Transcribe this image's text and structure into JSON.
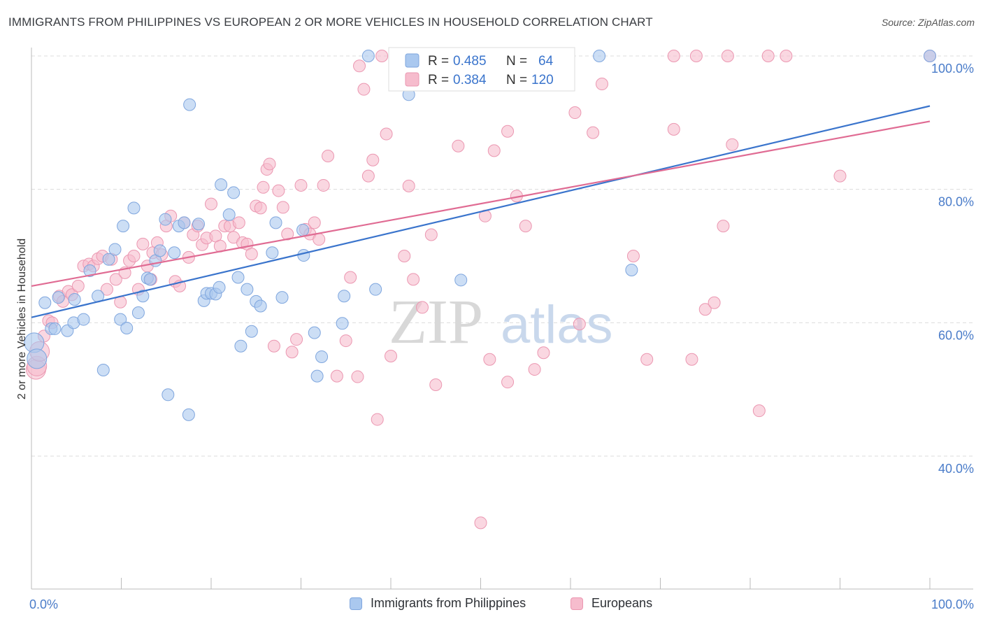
{
  "title": "IMMIGRANTS FROM PHILIPPINES VS EUROPEAN 2 OR MORE VEHICLES IN HOUSEHOLD CORRELATION CHART",
  "source": "Source: ZipAtlas.com",
  "watermark": {
    "zip": "ZIP",
    "atlas": "atlas"
  },
  "colors": {
    "blue_fill": "#aac8ef",
    "blue_stroke": "#7fa6de",
    "blue_line": "#3a74cc",
    "pink_fill": "#f6bccd",
    "pink_stroke": "#eb97b1",
    "pink_line": "#e06b93",
    "axis_label": "#4a7cc9",
    "grid": "#dcdcdc"
  },
  "legend_box": {
    "rows": [
      {
        "r_label": "R =",
        "r_value": "0.485",
        "n_label": "N =",
        "n_value": "64"
      },
      {
        "r_label": "R =",
        "r_value": "0.384",
        "n_label": "N =",
        "n_value": "120"
      }
    ]
  },
  "chart_data": {
    "type": "scatter",
    "title": "IMMIGRANTS FROM PHILIPPINES VS EUROPEAN 2 OR MORE VEHICLES IN HOUSEHOLD CORRELATION CHART",
    "xlabel": "",
    "ylabel": "2 or more Vehicles in Household",
    "xlim": [
      0,
      100
    ],
    "ylim": [
      20,
      104
    ],
    "x_tick_labels": [
      "0.0%",
      "100.0%"
    ],
    "y_ticks": [
      40,
      60,
      80,
      100
    ],
    "y_tick_labels": [
      "40.0%",
      "60.0%",
      "80.0%",
      "100.0%"
    ],
    "grid": true,
    "legend_position": "top-center",
    "series": [
      {
        "name": "Immigrants from Philippines",
        "R": 0.485,
        "N": 64,
        "trend": {
          "x": [
            0,
            100
          ],
          "y": [
            60.8,
            92.5
          ]
        },
        "points": [
          [
            0.3,
            57.0
          ],
          [
            0.6,
            54.6
          ],
          [
            1.5,
            63.0
          ],
          [
            2.2,
            59.1
          ],
          [
            2.6,
            59.1
          ],
          [
            3.0,
            63.8
          ],
          [
            4.0,
            58.8
          ],
          [
            4.7,
            60.0
          ],
          [
            4.8,
            63.5
          ],
          [
            5.8,
            60.5
          ],
          [
            6.5,
            67.8
          ],
          [
            7.4,
            64.0
          ],
          [
            8.0,
            52.9
          ],
          [
            8.6,
            69.5
          ],
          [
            9.3,
            71.0
          ],
          [
            9.9,
            60.5
          ],
          [
            10.2,
            74.5
          ],
          [
            10.6,
            59.2
          ],
          [
            11.4,
            77.2
          ],
          [
            11.9,
            61.5
          ],
          [
            12.4,
            64.0
          ],
          [
            12.9,
            66.7
          ],
          [
            13.2,
            66.5
          ],
          [
            13.8,
            69.3
          ],
          [
            14.3,
            70.8
          ],
          [
            14.9,
            75.5
          ],
          [
            15.2,
            49.2
          ],
          [
            15.9,
            70.5
          ],
          [
            16.4,
            74.5
          ],
          [
            17.0,
            75.0
          ],
          [
            17.5,
            46.2
          ],
          [
            17.6,
            92.7
          ],
          [
            18.6,
            74.8
          ],
          [
            19.2,
            63.3
          ],
          [
            19.5,
            64.4
          ],
          [
            20.0,
            64.4
          ],
          [
            20.5,
            64.3
          ],
          [
            20.9,
            65.3
          ],
          [
            21.1,
            80.7
          ],
          [
            22.0,
            76.2
          ],
          [
            22.5,
            79.5
          ],
          [
            23.0,
            66.8
          ],
          [
            23.3,
            56.5
          ],
          [
            24.0,
            65.0
          ],
          [
            24.5,
            58.7
          ],
          [
            25.0,
            63.2
          ],
          [
            25.5,
            62.5
          ],
          [
            26.8,
            70.5
          ],
          [
            27.2,
            75.0
          ],
          [
            27.9,
            63.8
          ],
          [
            30.2,
            73.9
          ],
          [
            30.3,
            70.1
          ],
          [
            31.5,
            58.5
          ],
          [
            31.8,
            52.0
          ],
          [
            32.3,
            54.9
          ],
          [
            34.6,
            59.9
          ],
          [
            34.8,
            64.0
          ],
          [
            37.5,
            100.0
          ],
          [
            38.3,
            65.0
          ],
          [
            42.0,
            94.2
          ],
          [
            47.8,
            66.4
          ],
          [
            63.2,
            100.0
          ],
          [
            66.8,
            67.9
          ],
          [
            100.0,
            100.0
          ]
        ]
      },
      {
        "name": "Europeans",
        "R": 0.384,
        "N": 120,
        "trend": {
          "x": [
            0,
            100
          ],
          "y": [
            65.5,
            90.2
          ]
        },
        "points": [
          [
            0.5,
            53.0
          ],
          [
            0.6,
            53.5
          ],
          [
            0.9,
            55.7
          ],
          [
            1.4,
            58.0
          ],
          [
            1.9,
            60.3
          ],
          [
            2.3,
            60.0
          ],
          [
            3.1,
            64.0
          ],
          [
            3.5,
            63.2
          ],
          [
            4.1,
            64.7
          ],
          [
            4.5,
            64.2
          ],
          [
            5.2,
            65.5
          ],
          [
            5.8,
            68.5
          ],
          [
            6.4,
            68.8
          ],
          [
            6.9,
            68.5
          ],
          [
            7.4,
            69.6
          ],
          [
            7.9,
            70.0
          ],
          [
            8.4,
            65.0
          ],
          [
            8.9,
            69.5
          ],
          [
            9.4,
            66.5
          ],
          [
            9.9,
            63.1
          ],
          [
            10.4,
            67.5
          ],
          [
            10.9,
            69.3
          ],
          [
            11.4,
            70.0
          ],
          [
            11.9,
            65.0
          ],
          [
            12.4,
            71.8
          ],
          [
            12.9,
            68.5
          ],
          [
            13.3,
            66.5
          ],
          [
            13.5,
            70.5
          ],
          [
            14.0,
            72.0
          ],
          [
            14.5,
            70.2
          ],
          [
            15.0,
            74.5
          ],
          [
            15.5,
            76.0
          ],
          [
            16.0,
            66.2
          ],
          [
            16.5,
            65.5
          ],
          [
            17.0,
            75.0
          ],
          [
            17.5,
            69.8
          ],
          [
            18.0,
            73.2
          ],
          [
            18.5,
            74.5
          ],
          [
            19.0,
            71.7
          ],
          [
            19.5,
            72.7
          ],
          [
            20.0,
            77.8
          ],
          [
            20.5,
            73.0
          ],
          [
            21.0,
            71.5
          ],
          [
            21.5,
            74.5
          ],
          [
            22.1,
            74.5
          ],
          [
            22.5,
            72.8
          ],
          [
            23.1,
            75.0
          ],
          [
            23.5,
            72.0
          ],
          [
            24.0,
            71.8
          ],
          [
            24.5,
            70.3
          ],
          [
            25.0,
            77.5
          ],
          [
            25.5,
            77.2
          ],
          [
            25.8,
            80.3
          ],
          [
            26.2,
            83.0
          ],
          [
            26.5,
            83.8
          ],
          [
            27.0,
            56.5
          ],
          [
            27.5,
            79.8
          ],
          [
            28.0,
            77.3
          ],
          [
            28.5,
            73.3
          ],
          [
            29.0,
            55.6
          ],
          [
            29.5,
            57.5
          ],
          [
            30.0,
            80.6
          ],
          [
            30.5,
            74.0
          ],
          [
            31.0,
            73.3
          ],
          [
            31.5,
            75.0
          ],
          [
            32.0,
            72.5
          ],
          [
            32.5,
            80.6
          ],
          [
            33.0,
            85.0
          ],
          [
            34.0,
            52.0
          ],
          [
            35.0,
            57.3
          ],
          [
            35.5,
            66.8
          ],
          [
            36.3,
            51.9
          ],
          [
            36.5,
            98.5
          ],
          [
            37.0,
            95.0
          ],
          [
            37.5,
            82.0
          ],
          [
            38.0,
            84.4
          ],
          [
            38.5,
            45.5
          ],
          [
            39.0,
            100.0
          ],
          [
            39.5,
            88.3
          ],
          [
            40.0,
            55.0
          ],
          [
            41.0,
            100.0
          ],
          [
            41.5,
            70.0
          ],
          [
            42.0,
            80.5
          ],
          [
            42.5,
            66.5
          ],
          [
            43.5,
            62.3
          ],
          [
            44.5,
            73.2
          ],
          [
            45.0,
            50.7
          ],
          [
            46.0,
            97.0
          ],
          [
            47.5,
            86.5
          ],
          [
            47.0,
            100.0
          ],
          [
            50.0,
            30.0
          ],
          [
            50.5,
            76.0
          ],
          [
            51.0,
            54.5
          ],
          [
            51.5,
            85.8
          ],
          [
            53.0,
            88.7
          ],
          [
            53.0,
            51.1
          ],
          [
            54.0,
            79.0
          ],
          [
            55.0,
            74.5
          ],
          [
            56.0,
            53.0
          ],
          [
            57.0,
            55.5
          ],
          [
            60.5,
            91.5
          ],
          [
            61.0,
            59.8
          ],
          [
            62.5,
            88.5
          ],
          [
            63.5,
            95.8
          ],
          [
            67.0,
            70.0
          ],
          [
            68.5,
            54.5
          ],
          [
            71.5,
            89.0
          ],
          [
            71.5,
            100.0
          ],
          [
            74.0,
            100.0
          ],
          [
            73.5,
            54.5
          ],
          [
            75.0,
            62.0
          ],
          [
            76.0,
            63.0
          ],
          [
            77.0,
            74.5
          ],
          [
            77.5,
            100.0
          ],
          [
            78.0,
            86.7
          ],
          [
            81.0,
            46.8
          ],
          [
            82.0,
            100.0
          ],
          [
            84.0,
            100.0
          ],
          [
            90.0,
            82.0
          ],
          [
            100.0,
            100.0
          ]
        ]
      }
    ]
  },
  "bottom_legend": [
    {
      "label": "Immigrants from Philippines"
    },
    {
      "label": "Europeans"
    }
  ]
}
